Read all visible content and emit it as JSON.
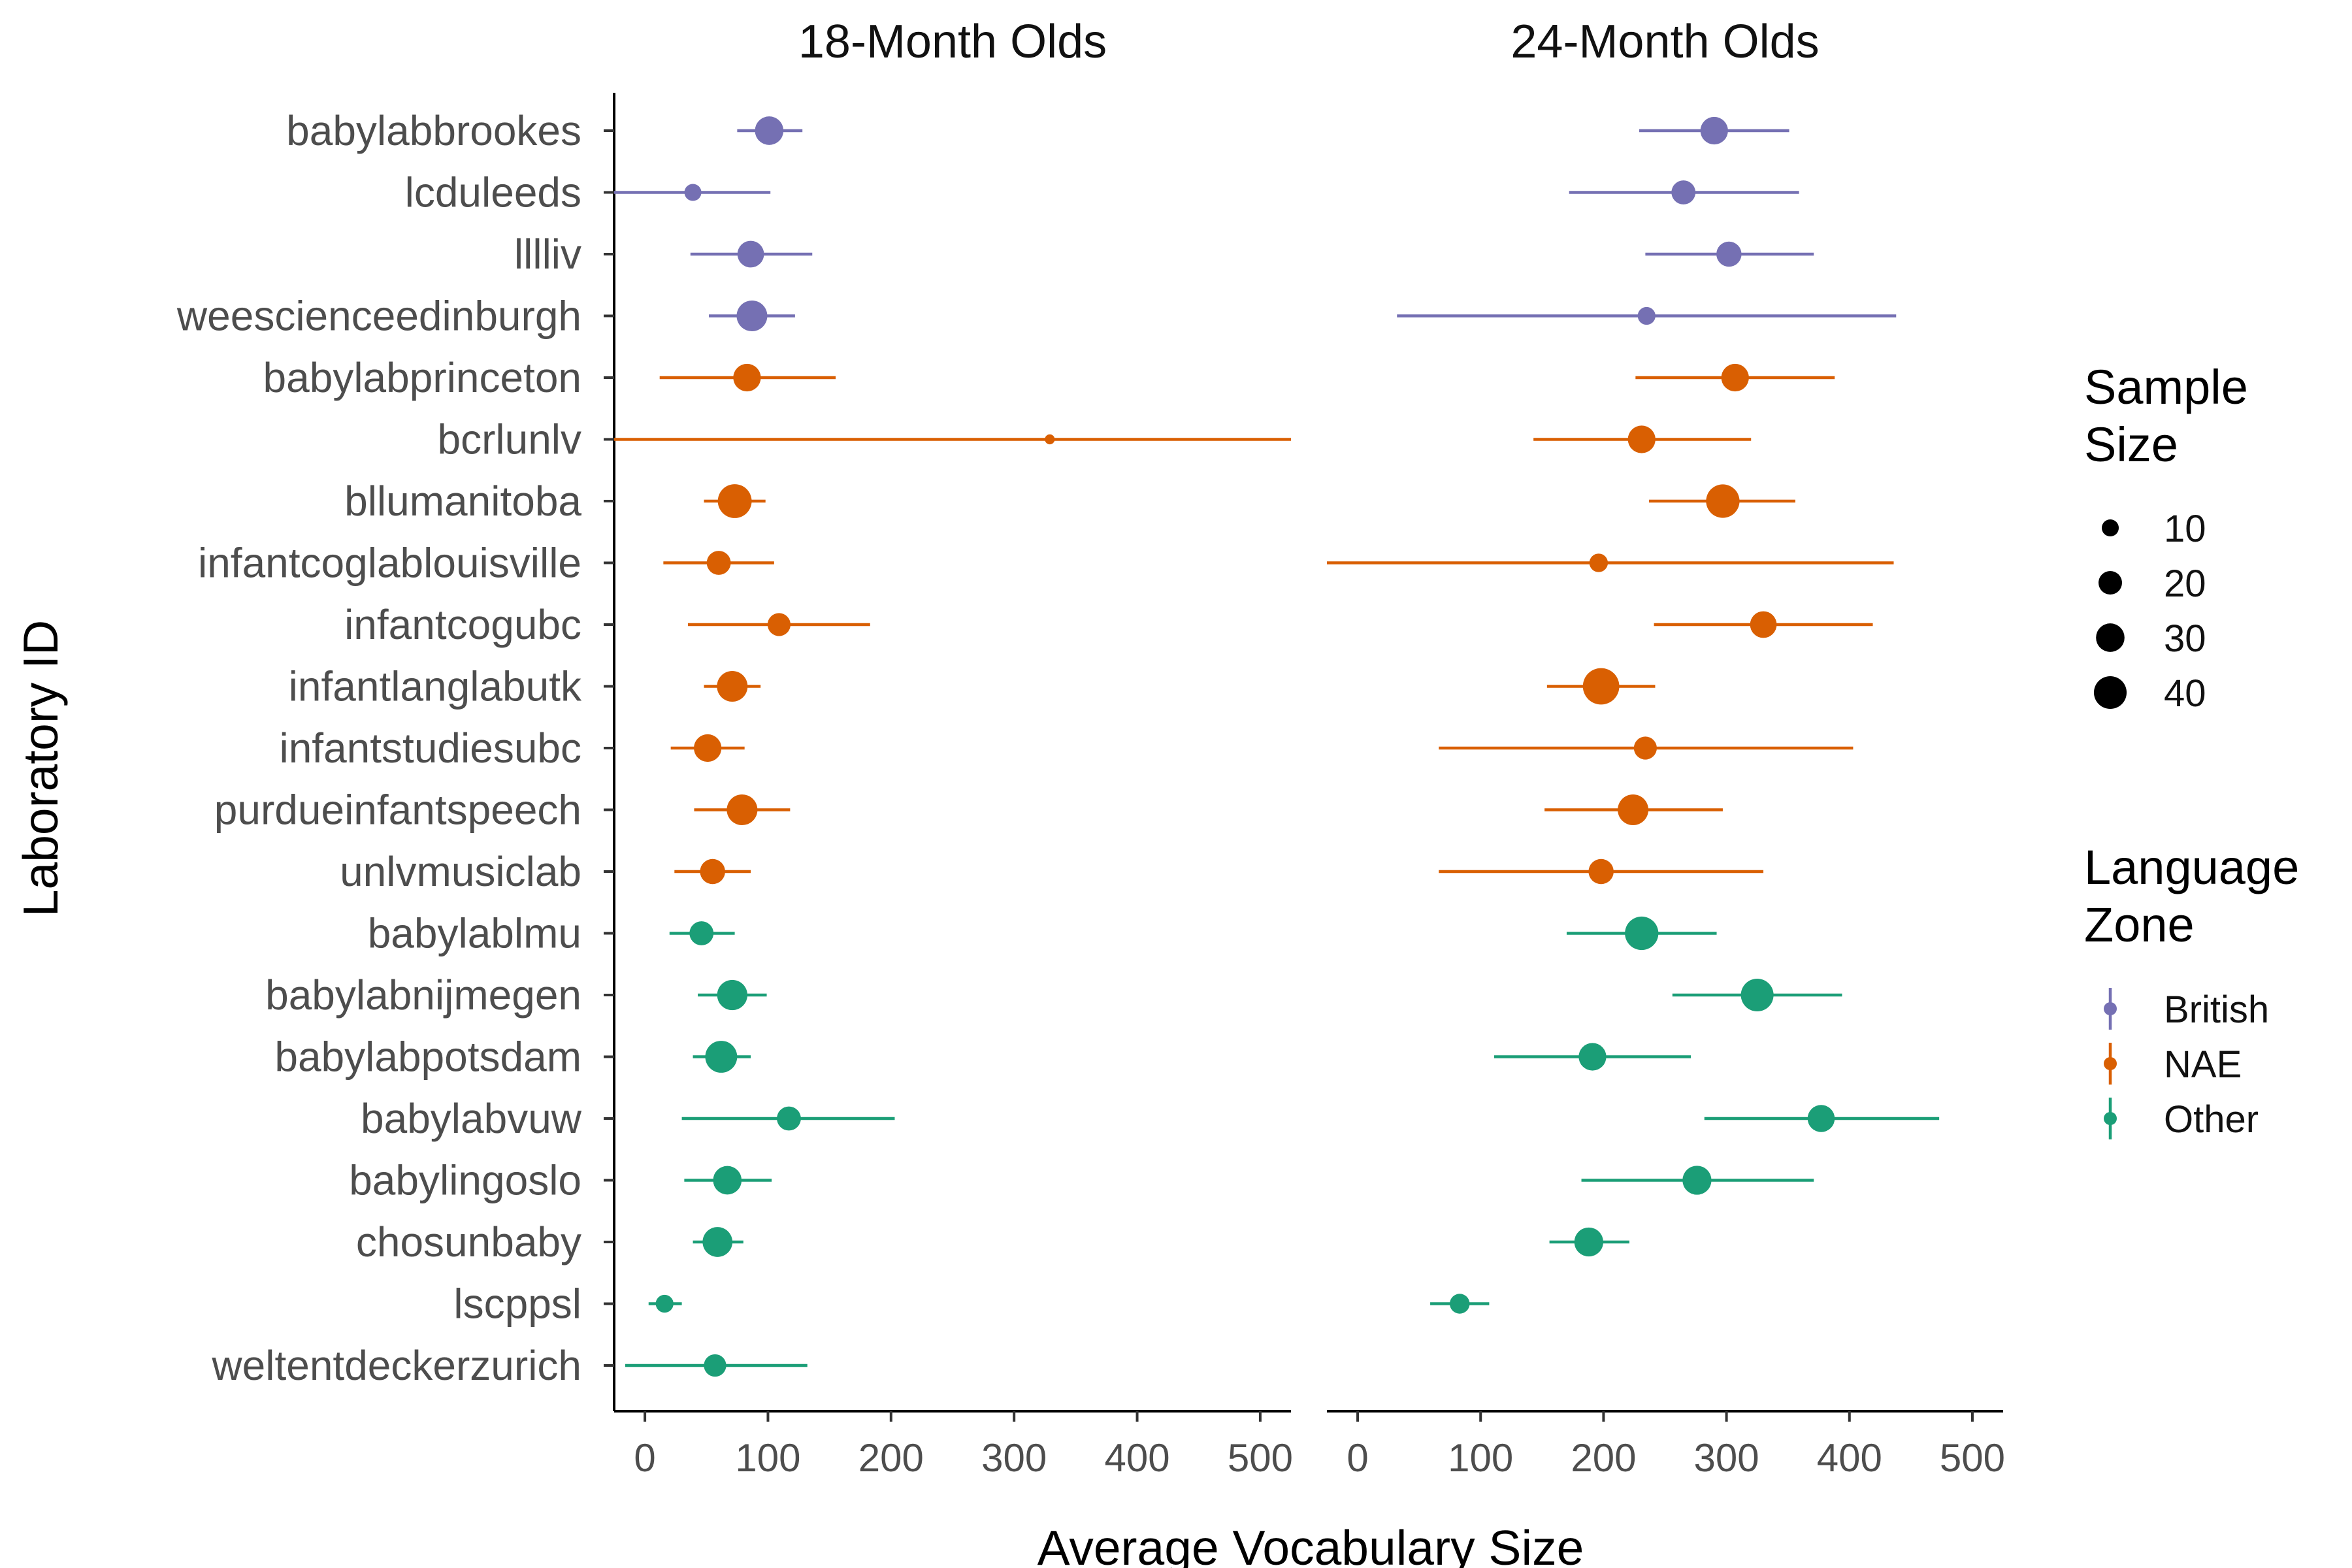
{
  "chart_data": {
    "type": "scatter",
    "subtype": "point-range (dot with horizontal error bars), faceted",
    "xlabel": "Average Vocabulary Size",
    "ylabel": "Laboratory ID",
    "xlim": [
      -25,
      525
    ],
    "xticks": [
      0,
      100,
      200,
      300,
      400,
      500
    ],
    "grid": false,
    "labs": [
      "babylabbrookes",
      "lcduleeds",
      "lllliv",
      "weescienceedinburgh",
      "babylabprinceton",
      "bcrlunlv",
      "bllumanitoba",
      "infantcoglablouisville",
      "infantcogubc",
      "infantlanglabutk",
      "infantstudiesubc",
      "purdueinfantspeech",
      "unlvmusiclab",
      "babylablmu",
      "babylabnijmegen",
      "babylabpotsdam",
      "babylabvuw",
      "babylingoslo",
      "chosunbaby",
      "lscppsl",
      "weltentdeckerzurich"
    ],
    "zone_colors": {
      "British": "#7570b3",
      "NAE": "#d95f02",
      "Other": "#1b9e77"
    },
    "panels": [
      {
        "title": "18-Month Olds",
        "points": [
          {
            "lab": "babylabbrookes",
            "zone": "British",
            "mean": 101,
            "lower": 75,
            "upper": 128,
            "n": 30
          },
          {
            "lab": "lcduleeds",
            "zone": "British",
            "mean": 39,
            "lower": -25,
            "upper": 102,
            "n": 10
          },
          {
            "lab": "lllliv",
            "zone": "British",
            "mean": 86,
            "lower": 37,
            "upper": 136,
            "n": 26
          },
          {
            "lab": "weescienceedinburgh",
            "zone": "British",
            "mean": 87,
            "lower": 52,
            "upper": 122,
            "n": 35
          },
          {
            "lab": "babylabprinceton",
            "zone": "NAE",
            "mean": 83,
            "lower": 12,
            "upper": 155,
            "n": 28
          },
          {
            "lab": "bcrlunlv",
            "zone": "NAE",
            "mean": 329,
            "lower": -25,
            "upper": 525,
            "n": 3
          },
          {
            "lab": "bllumanitoba",
            "zone": "NAE",
            "mean": 73,
            "lower": 48,
            "upper": 98,
            "n": 43
          },
          {
            "lab": "infantcoglablouisville",
            "zone": "NAE",
            "mean": 60,
            "lower": 15,
            "upper": 105,
            "n": 21
          },
          {
            "lab": "infantcogubc",
            "zone": "NAE",
            "mean": 109,
            "lower": 35,
            "upper": 183,
            "n": 19
          },
          {
            "lab": "infantlanglabutk",
            "zone": "NAE",
            "mean": 71,
            "lower": 48,
            "upper": 94,
            "n": 35
          },
          {
            "lab": "infantstudiesubc",
            "zone": "NAE",
            "mean": 51,
            "lower": 21,
            "upper": 81,
            "n": 28
          },
          {
            "lab": "purdueinfantspeech",
            "zone": "NAE",
            "mean": 79,
            "lower": 40,
            "upper": 118,
            "n": 35
          },
          {
            "lab": "unlvmusiclab",
            "zone": "NAE",
            "mean": 55,
            "lower": 24,
            "upper": 86,
            "n": 23
          },
          {
            "lab": "babylablmu",
            "zone": "Other",
            "mean": 46,
            "lower": 20,
            "upper": 73,
            "n": 21
          },
          {
            "lab": "babylabnijmegen",
            "zone": "Other",
            "mean": 71,
            "lower": 43,
            "upper": 99,
            "n": 34
          },
          {
            "lab": "babylabpotsdam",
            "zone": "Other",
            "mean": 62,
            "lower": 39,
            "upper": 86,
            "n": 38
          },
          {
            "lab": "babylabvuw",
            "zone": "Other",
            "mean": 117,
            "lower": 30,
            "upper": 203,
            "n": 21
          },
          {
            "lab": "babylingoslo",
            "zone": "Other",
            "mean": 67,
            "lower": 32,
            "upper": 103,
            "n": 30
          },
          {
            "lab": "chosunbaby",
            "zone": "Other",
            "mean": 59,
            "lower": 39,
            "upper": 80,
            "n": 33
          },
          {
            "lab": "lscppsl",
            "zone": "Other",
            "mean": 16,
            "lower": 3,
            "upper": 30,
            "n": 11
          },
          {
            "lab": "weltentdeckerzurich",
            "zone": "Other",
            "mean": 57,
            "lower": -16,
            "upper": 132,
            "n": 18
          }
        ]
      },
      {
        "title": "24-Month Olds",
        "points": [
          {
            "lab": "babylabbrookes",
            "zone": "British",
            "mean": 290,
            "lower": 229,
            "upper": 351,
            "n": 28
          },
          {
            "lab": "lcduleeds",
            "zone": "British",
            "mean": 265,
            "lower": 172,
            "upper": 359,
            "n": 21
          },
          {
            "lab": "lllliv",
            "zone": "British",
            "mean": 302,
            "lower": 234,
            "upper": 371,
            "n": 23
          },
          {
            "lab": "weescienceedinburgh",
            "zone": "British",
            "mean": 235,
            "lower": 32,
            "upper": 438,
            "n": 11
          },
          {
            "lab": "babylabprinceton",
            "zone": "NAE",
            "mean": 307,
            "lower": 226,
            "upper": 388,
            "n": 28
          },
          {
            "lab": "bcrlunlv",
            "zone": "NAE",
            "mean": 231,
            "lower": 143,
            "upper": 320,
            "n": 28
          },
          {
            "lab": "bllumanitoba",
            "zone": "NAE",
            "mean": 297,
            "lower": 237,
            "upper": 356,
            "n": 42
          },
          {
            "lab": "infantcoglablouisville",
            "zone": "NAE",
            "mean": 196,
            "lower": -25,
            "upper": 436,
            "n": 12
          },
          {
            "lab": "infantcogubc",
            "zone": "NAE",
            "mean": 330,
            "lower": 241,
            "upper": 419,
            "n": 26
          },
          {
            "lab": "infantlanglabutk",
            "zone": "NAE",
            "mean": 198,
            "lower": 154,
            "upper": 242,
            "n": 50
          },
          {
            "lab": "infantstudiesubc",
            "zone": "NAE",
            "mean": 234,
            "lower": 66,
            "upper": 403,
            "n": 19
          },
          {
            "lab": "purdueinfantspeech",
            "zone": "NAE",
            "mean": 224,
            "lower": 152,
            "upper": 297,
            "n": 35
          },
          {
            "lab": "unlvmusiclab",
            "zone": "NAE",
            "mean": 198,
            "lower": 66,
            "upper": 330,
            "n": 23
          },
          {
            "lab": "babylablmu",
            "zone": "Other",
            "mean": 231,
            "lower": 170,
            "upper": 292,
            "n": 42
          },
          {
            "lab": "babylabnijmegen",
            "zone": "Other",
            "mean": 325,
            "lower": 256,
            "upper": 394,
            "n": 40
          },
          {
            "lab": "babylabpotsdam",
            "zone": "Other",
            "mean": 191,
            "lower": 111,
            "upper": 271,
            "n": 28
          },
          {
            "lab": "babylabvuw",
            "zone": "Other",
            "mean": 377,
            "lower": 282,
            "upper": 473,
            "n": 27
          },
          {
            "lab": "babylingoslo",
            "zone": "Other",
            "mean": 276,
            "lower": 182,
            "upper": 371,
            "n": 31
          },
          {
            "lab": "chosunbaby",
            "zone": "Other",
            "mean": 188,
            "lower": 156,
            "upper": 221,
            "n": 31
          },
          {
            "lab": "lscppsl",
            "zone": "Other",
            "mean": 83,
            "lower": 59,
            "upper": 107,
            "n": 14
          },
          {
            "lab": "weltentdeckerzurich",
            "zone": null,
            "mean": null,
            "lower": null,
            "upper": null,
            "n": null
          }
        ]
      }
    ],
    "legend": {
      "placement": "right",
      "size": {
        "title_lines": [
          "Sample",
          "Size"
        ],
        "values": [
          10,
          20,
          30,
          40
        ]
      },
      "zone": {
        "title_lines": [
          "Language",
          "Zone"
        ],
        "entries": [
          "British",
          "NAE",
          "Other"
        ]
      }
    }
  }
}
